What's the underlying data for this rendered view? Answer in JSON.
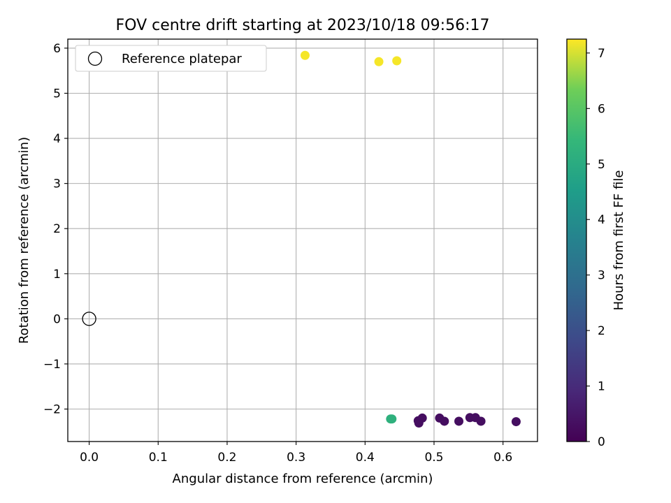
{
  "chart_data": {
    "type": "scatter",
    "title": "FOV centre drift starting at 2023/10/18 09:56:17",
    "xlabel": "Angular distance from reference (arcmin)",
    "ylabel": "Rotation from reference (arcmin)",
    "xlim": [
      -0.031,
      0.65
    ],
    "ylim": [
      -2.72,
      6.2
    ],
    "xticks": [
      0.0,
      0.1,
      0.2,
      0.3,
      0.4,
      0.5,
      0.6
    ],
    "xtick_labels": [
      "0.0",
      "0.1",
      "0.2",
      "0.3",
      "0.4",
      "0.5",
      "0.6"
    ],
    "yticks": [
      -2,
      -1,
      0,
      1,
      2,
      3,
      4,
      5,
      6
    ],
    "ytick_labels": [
      "−2",
      "−1",
      "0",
      "1",
      "2",
      "3",
      "4",
      "5",
      "6"
    ],
    "grid": true,
    "legend_position": "top-left",
    "legend": [
      {
        "label": "Reference platepar",
        "marker": "open-circle"
      }
    ],
    "reference_point": {
      "x": 0.0,
      "y": 0.0
    },
    "colorbar": {
      "label": "Hours from first FF file",
      "range": [
        0,
        7.25
      ],
      "ticks": [
        0,
        1,
        2,
        3,
        4,
        5,
        6,
        7
      ],
      "tick_labels": [
        "0",
        "1",
        "2",
        "3",
        "4",
        "5",
        "6",
        "7"
      ],
      "colormap": "viridis"
    },
    "points": [
      {
        "x": 0.313,
        "y": 5.84,
        "hours": 7.2
      },
      {
        "x": 0.42,
        "y": 5.7,
        "hours": 7.2
      },
      {
        "x": 0.446,
        "y": 5.72,
        "hours": 7.2
      },
      {
        "x": 0.437,
        "y": -2.22,
        "hours": 5.2
      },
      {
        "x": 0.439,
        "y": -2.22,
        "hours": 5.2
      },
      {
        "x": 0.477,
        "y": -2.26,
        "hours": 0.3
      },
      {
        "x": 0.478,
        "y": -2.31,
        "hours": 0.3
      },
      {
        "x": 0.483,
        "y": -2.2,
        "hours": 0.3
      },
      {
        "x": 0.508,
        "y": -2.2,
        "hours": 0.3
      },
      {
        "x": 0.515,
        "y": -2.27,
        "hours": 0.3
      },
      {
        "x": 0.536,
        "y": -2.27,
        "hours": 0.3
      },
      {
        "x": 0.552,
        "y": -2.19,
        "hours": 0.3
      },
      {
        "x": 0.56,
        "y": -2.19,
        "hours": 0.3
      },
      {
        "x": 0.568,
        "y": -2.27,
        "hours": 0.3
      },
      {
        "x": 0.619,
        "y": -2.28,
        "hours": 0.3
      }
    ]
  }
}
